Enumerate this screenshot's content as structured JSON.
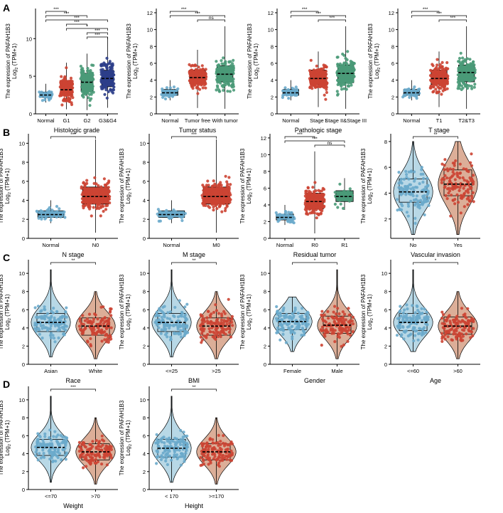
{
  "figure": {
    "ylabel_line1": "The expression of PAFAH1B3",
    "ylabel_line2_main": "Log",
    "ylabel_line2_sub": "2",
    "ylabel_line2_rest": " (TPM+1)"
  },
  "colors": {
    "blue": "#6aaacb",
    "red": "#cc4433",
    "green": "#4a9a78",
    "navy": "#2c3e8a",
    "red_violin": "#dcae98",
    "blue_violin": "#b8d8e6"
  },
  "rows": [
    {
      "letter": "A"
    },
    {
      "letter": "B"
    },
    {
      "letter": "C"
    },
    {
      "letter": "D"
    }
  ],
  "chart_data": [
    {
      "type": "box",
      "panel": "A1",
      "xlabel": "Histologic grade",
      "ylim": [
        0,
        14
      ],
      "yticks": [
        0,
        5,
        10
      ],
      "categories": [
        "Normal",
        "G1",
        "G2",
        "G3&G4"
      ],
      "box_colors": [
        "blue",
        "red",
        "green",
        "navy"
      ],
      "series": [
        {
          "name": "Normal",
          "values": [
            1.5,
            2.2,
            2.5,
            2.9,
            4.0
          ]
        },
        {
          "name": "G1",
          "values": [
            0.6,
            2.5,
            3.2,
            4.4,
            6.8
          ]
        },
        {
          "name": "G2",
          "values": [
            0.5,
            3.0,
            4.2,
            5.4,
            8.0
          ]
        },
        {
          "name": "G3&G4",
          "values": [
            0.8,
            3.6,
            4.7,
            5.8,
            10.2
          ]
        }
      ],
      "violin": false,
      "comparisons": [
        {
          "from": 0,
          "to": 1,
          "label": "***",
          "level": 0
        },
        {
          "from": 0,
          "to": 2,
          "label": "***",
          "level": 1
        },
        {
          "from": 0,
          "to": 3,
          "label": "***",
          "level": 2
        },
        {
          "from": 1,
          "to": 2,
          "label": "***",
          "level": 3
        },
        {
          "from": 1,
          "to": 3,
          "label": "*",
          "level": 4
        },
        {
          "from": 2,
          "to": 3,
          "label": "***",
          "level": 5
        },
        {
          "from": 2,
          "to": 3,
          "label": "***",
          "level": 6
        }
      ]
    },
    {
      "type": "box",
      "panel": "A2",
      "xlabel": "Tumor status",
      "ylim": [
        0,
        12.5
      ],
      "yticks": [
        0,
        2,
        4,
        6,
        8,
        10,
        12
      ],
      "categories": [
        "Normal",
        "Tumor free",
        "With tumor"
      ],
      "box_colors": [
        "blue",
        "red",
        "green"
      ],
      "series": [
        {
          "name": "Normal",
          "values": [
            1.6,
            2.2,
            2.5,
            2.9,
            4.0
          ]
        },
        {
          "name": "Tumor free",
          "values": [
            0.7,
            3.6,
            4.3,
            5.2,
            7.6
          ]
        },
        {
          "name": "With tumor",
          "values": [
            0.6,
            3.8,
            4.7,
            5.7,
            10.4
          ]
        }
      ],
      "violin": false,
      "comparisons": [
        {
          "from": 0,
          "to": 1,
          "label": "***",
          "level": 0
        },
        {
          "from": 0,
          "to": 2,
          "label": "***",
          "level": 1
        },
        {
          "from": 1,
          "to": 2,
          "label": "ns",
          "level": 2
        }
      ]
    },
    {
      "type": "box",
      "panel": "A3",
      "xlabel": "Pathologic stage",
      "ylim": [
        0,
        12.5
      ],
      "yticks": [
        0,
        2,
        4,
        6,
        8,
        10,
        12
      ],
      "categories": [
        "Normal",
        "Stage I",
        "Stage II&Stage III"
      ],
      "box_colors": [
        "blue",
        "red",
        "green"
      ],
      "series": [
        {
          "name": "Normal",
          "values": [
            1.6,
            2.2,
            2.5,
            2.9,
            4.0
          ]
        },
        {
          "name": "Stage I",
          "values": [
            0.8,
            3.5,
            4.2,
            5.2,
            7.4
          ]
        },
        {
          "name": "Stage II&Stage III",
          "values": [
            0.6,
            3.7,
            4.8,
            5.8,
            10.4
          ]
        }
      ],
      "violin": false,
      "comparisons": [
        {
          "from": 0,
          "to": 1,
          "label": "***",
          "level": 0
        },
        {
          "from": 0,
          "to": 2,
          "label": "***",
          "level": 1
        },
        {
          "from": 1,
          "to": 2,
          "label": "***",
          "level": 2
        }
      ]
    },
    {
      "type": "box",
      "panel": "A4",
      "xlabel": "T stage",
      "ylim": [
        0,
        12.5
      ],
      "yticks": [
        0,
        2,
        4,
        6,
        8,
        10,
        12
      ],
      "categories": [
        "Normal",
        "T1",
        "T2&T3"
      ],
      "box_colors": [
        "blue",
        "red",
        "green"
      ],
      "series": [
        {
          "name": "Normal",
          "values": [
            1.6,
            2.2,
            2.5,
            2.9,
            4.0
          ]
        },
        {
          "name": "T1",
          "values": [
            0.8,
            3.5,
            4.2,
            5.2,
            7.4
          ]
        },
        {
          "name": "T2&T3",
          "values": [
            0.6,
            3.8,
            4.9,
            5.8,
            10.4
          ]
        }
      ],
      "violin": false,
      "comparisons": [
        {
          "from": 0,
          "to": 1,
          "label": "***",
          "level": 0
        },
        {
          "from": 0,
          "to": 2,
          "label": "***",
          "level": 1
        },
        {
          "from": 1,
          "to": 2,
          "label": "***",
          "level": 2
        }
      ]
    },
    {
      "type": "box",
      "panel": "B1",
      "xlabel": "N stage",
      "ylim": [
        0,
        11
      ],
      "yticks": [
        0,
        2,
        4,
        6,
        8,
        10
      ],
      "categories": [
        "Normal",
        "N0"
      ],
      "box_colors": [
        "blue",
        "red"
      ],
      "series": [
        {
          "name": "Normal",
          "values": [
            1.6,
            2.2,
            2.5,
            2.9,
            4.0
          ]
        },
        {
          "name": "N0",
          "values": [
            0.6,
            3.6,
            4.4,
            5.4,
            10.4
          ]
        }
      ],
      "violin": false,
      "comparisons": [
        {
          "from": 0,
          "to": 1,
          "label": "***",
          "level": 0
        }
      ]
    },
    {
      "type": "box",
      "panel": "B2",
      "xlabel": "M stage",
      "ylim": [
        0,
        11
      ],
      "yticks": [
        0,
        2,
        4,
        6,
        8,
        10
      ],
      "categories": [
        "Normal",
        "M0"
      ],
      "box_colors": [
        "blue",
        "red"
      ],
      "series": [
        {
          "name": "Normal",
          "values": [
            1.6,
            2.2,
            2.5,
            2.9,
            4.0
          ]
        },
        {
          "name": "M0",
          "values": [
            0.6,
            3.6,
            4.4,
            5.4,
            10.4
          ]
        }
      ],
      "violin": false,
      "comparisons": [
        {
          "from": 0,
          "to": 1,
          "label": "***",
          "level": 0
        }
      ]
    },
    {
      "type": "box",
      "panel": "B3",
      "xlabel": "Residual tumor",
      "ylim": [
        0,
        12.5
      ],
      "yticks": [
        0,
        2,
        4,
        6,
        8,
        10,
        12
      ],
      "categories": [
        "Normal",
        "R0",
        "R1"
      ],
      "box_colors": [
        "blue",
        "red",
        "green"
      ],
      "series": [
        {
          "name": "Normal",
          "values": [
            1.6,
            2.2,
            2.5,
            2.9,
            4.0
          ]
        },
        {
          "name": "R0",
          "values": [
            0.6,
            3.5,
            4.4,
            5.4,
            10.4
          ]
        },
        {
          "name": "R1",
          "values": [
            3.4,
            4.4,
            5.0,
            5.7,
            7.2
          ]
        }
      ],
      "violin": false,
      "comparisons": [
        {
          "from": 0,
          "to": 1,
          "label": "***",
          "level": 0
        },
        {
          "from": 0,
          "to": 2,
          "label": "***",
          "level": 1
        },
        {
          "from": 1,
          "to": 2,
          "label": "ns",
          "level": 2
        }
      ]
    },
    {
      "type": "violin_box",
      "panel": "B4",
      "xlabel": "Vascular invasion",
      "ylim": [
        0.5,
        8.6
      ],
      "yticks": [
        2,
        4,
        6,
        8
      ],
      "categories": [
        "No",
        "Yes"
      ],
      "box_colors": [
        "blue",
        "red"
      ],
      "series": [
        {
          "name": "No",
          "values": [
            0.8,
            3.3,
            4.1,
            5.1,
            8.0
          ]
        },
        {
          "name": "Yes",
          "values": [
            0.8,
            3.8,
            4.7,
            5.8,
            8.0
          ]
        }
      ],
      "violin": true,
      "comparisons": [
        {
          "from": 0,
          "to": 1,
          "label": "**",
          "level": 0
        }
      ]
    },
    {
      "type": "violin_box",
      "panel": "C1",
      "xlabel": "Race",
      "ylim": [
        0,
        11.5
      ],
      "yticks": [
        0,
        2,
        4,
        6,
        8,
        10
      ],
      "categories": [
        "Asian",
        "White"
      ],
      "box_colors": [
        "blue",
        "red"
      ],
      "series": [
        {
          "name": "Asian",
          "values": [
            0.8,
            3.6,
            4.6,
            5.6,
            10.4
          ]
        },
        {
          "name": "White",
          "values": [
            0.6,
            3.2,
            4.2,
            5.1,
            8.0
          ]
        }
      ],
      "violin": true,
      "comparisons": [
        {
          "from": 0,
          "to": 1,
          "label": "**",
          "level": 0
        }
      ]
    },
    {
      "type": "violin_box",
      "panel": "C2",
      "xlabel": "BMI",
      "ylim": [
        0,
        11.5
      ],
      "yticks": [
        0,
        2,
        4,
        6,
        8,
        10
      ],
      "categories": [
        "<=25",
        ">25"
      ],
      "box_colors": [
        "blue",
        "red"
      ],
      "series": [
        {
          "name": "<=25",
          "values": [
            0.8,
            3.6,
            4.6,
            5.6,
            10.4
          ]
        },
        {
          "name": ">25",
          "values": [
            0.6,
            3.2,
            4.2,
            5.1,
            8.0
          ]
        }
      ],
      "violin": true,
      "comparisons": [
        {
          "from": 0,
          "to": 1,
          "label": "**",
          "level": 0
        }
      ]
    },
    {
      "type": "violin_box",
      "panel": "C3",
      "xlabel": "Gender",
      "ylim": [
        0,
        11.5
      ],
      "yticks": [
        0,
        2,
        4,
        6,
        8,
        10
      ],
      "categories": [
        "Female",
        "Male"
      ],
      "box_colors": [
        "blue",
        "red"
      ],
      "series": [
        {
          "name": "Female",
          "values": [
            1.4,
            3.8,
            4.7,
            5.6,
            7.4
          ]
        },
        {
          "name": "Male",
          "values": [
            0.6,
            3.4,
            4.3,
            5.3,
            10.4
          ]
        }
      ],
      "violin": true,
      "comparisons": [
        {
          "from": 0,
          "to": 1,
          "label": "*",
          "level": 0
        }
      ]
    },
    {
      "type": "violin_box",
      "panel": "C4",
      "xlabel": "Age",
      "ylim": [
        0,
        11.5
      ],
      "yticks": [
        0,
        2,
        4,
        6,
        8,
        10
      ],
      "categories": [
        "<=60",
        ">60"
      ],
      "box_colors": [
        "blue",
        "red"
      ],
      "series": [
        {
          "name": "<=60",
          "values": [
            1.4,
            3.7,
            4.6,
            5.6,
            10.4
          ]
        },
        {
          "name": ">60",
          "values": [
            0.6,
            3.3,
            4.2,
            5.2,
            8.0
          ]
        }
      ],
      "violin": true,
      "comparisons": [
        {
          "from": 0,
          "to": 1,
          "label": "*",
          "level": 0
        }
      ]
    },
    {
      "type": "violin_box",
      "panel": "D1",
      "xlabel": "Weight",
      "ylim": [
        0,
        11.5
      ],
      "yticks": [
        0,
        2,
        4,
        6,
        8,
        10
      ],
      "categories": [
        "<=70",
        ">70"
      ],
      "box_colors": [
        "blue",
        "red"
      ],
      "series": [
        {
          "name": "<=70",
          "values": [
            0.8,
            3.8,
            4.7,
            5.6,
            10.4
          ]
        },
        {
          "name": ">70",
          "values": [
            0.6,
            3.3,
            4.2,
            5.1,
            8.0
          ]
        }
      ],
      "violin": true,
      "comparisons": [
        {
          "from": 0,
          "to": 1,
          "label": "***",
          "level": 0
        }
      ]
    },
    {
      "type": "violin_box",
      "panel": "D2",
      "xlabel": "Height",
      "ylim": [
        0,
        11.5
      ],
      "yticks": [
        0,
        2,
        4,
        6,
        8,
        10
      ],
      "categories": [
        "< 170",
        ">=170"
      ],
      "box_colors": [
        "blue",
        "red"
      ],
      "series": [
        {
          "name": "< 170",
          "values": [
            0.8,
            3.6,
            4.6,
            5.6,
            10.4
          ]
        },
        {
          "name": ">=170",
          "values": [
            0.6,
            3.3,
            4.2,
            5.1,
            8.0
          ]
        }
      ],
      "violin": true,
      "comparisons": [
        {
          "from": 0,
          "to": 1,
          "label": "**",
          "level": 0
        }
      ]
    }
  ]
}
